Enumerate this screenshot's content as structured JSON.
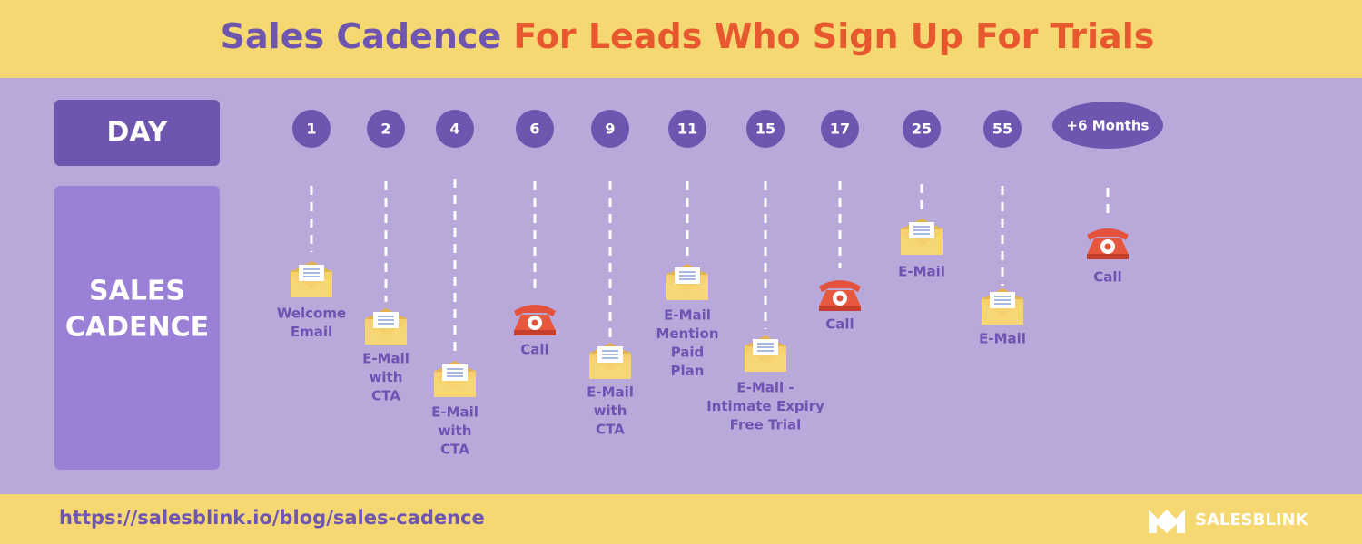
{
  "header": {
    "title_part1": "Sales Cadence",
    "title_part2": "For Leads Who Sign Up For Trials"
  },
  "row_labels": {
    "day": "DAY",
    "cadence": [
      "SALES",
      "CADENCE"
    ]
  },
  "steps": [
    {
      "day": "1",
      "label": [
        "Welcome",
        "Email"
      ]
    },
    {
      "day": "2",
      "label": [
        "E-Mail",
        "with",
        "CTA"
      ]
    },
    {
      "day": "4",
      "label": [
        "E-Mail",
        "with",
        "CTA"
      ]
    },
    {
      "day": "6",
      "label": [
        "Call"
      ]
    },
    {
      "day": "9",
      "label": [
        "E-Mail",
        "with",
        "CTA"
      ]
    },
    {
      "day": "11",
      "label": [
        "E-Mail",
        "Mention",
        "Paid",
        "Plan"
      ]
    },
    {
      "day": "15",
      "label": [
        "E-Mail -",
        "Intimate Expiry",
        "Free Trial"
      ]
    },
    {
      "day": "17",
      "label": [
        "Call"
      ]
    },
    {
      "day": "25",
      "label": [
        "E-Mail"
      ]
    },
    {
      "day": "55",
      "label": [
        "E-Mail"
      ]
    },
    {
      "day": "+6 Months",
      "label": [
        "Call"
      ]
    }
  ],
  "footer": {
    "url": "https://salesblink.io/blog/sales-cadence",
    "brand": "SALESBLINK"
  }
}
